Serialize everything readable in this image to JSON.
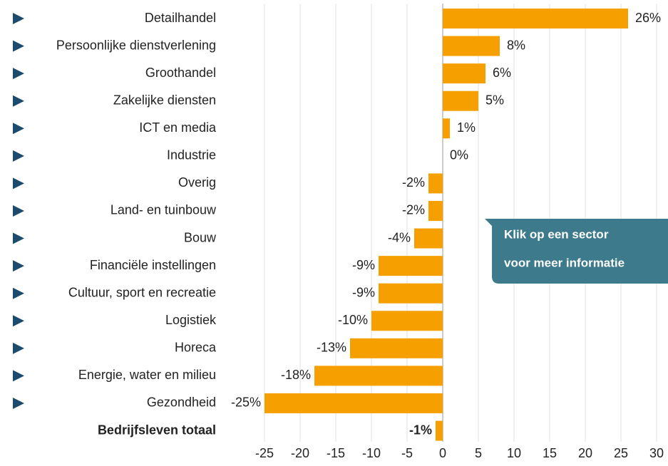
{
  "chart_data": {
    "type": "bar",
    "orientation": "horizontal",
    "color": "#f5a000",
    "categories": [
      "Detailhandel",
      "Persoonlijke dienstverlening",
      "Groothandel",
      "Zakelijke diensten",
      "ICT en media",
      "Industrie",
      "Overig",
      "Land- en tuinbouw",
      "Bouw",
      "Financiële instellingen",
      "Cultuur, sport en recreatie",
      "Logistiek",
      "Horeca",
      "Energie, water en milieu",
      "Gezondheid"
    ],
    "values": [
      26,
      8,
      6,
      5,
      1,
      0,
      -2,
      -2,
      -4,
      -9,
      -9,
      -10,
      -13,
      -18,
      -25
    ],
    "value_labels": [
      "26%",
      "8%",
      "6%",
      "5%",
      "1%",
      "0%",
      "-2%",
      "-2%",
      "-4%",
      "-9%",
      "-9%",
      "-10%",
      "-13%",
      "-18%",
      "-25%"
    ],
    "total": {
      "label": "Bedrijfsleven totaal",
      "value": -1,
      "value_label": "-1%"
    },
    "xlim": [
      -25,
      30
    ],
    "xticks": [
      -25,
      -20,
      -15,
      -10,
      -5,
      0,
      5,
      10,
      15,
      20,
      25,
      30
    ],
    "grid": true,
    "annotation": [
      "Klik op een sector",
      "voor meer informatie"
    ]
  }
}
